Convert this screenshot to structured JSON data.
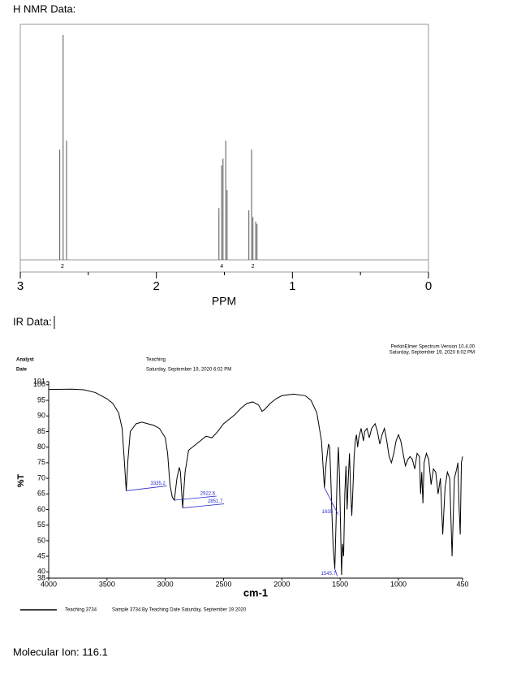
{
  "nmr_heading": "H NMR Data:",
  "ir_heading": "IR Data:",
  "footer": "Molecular Ion: 116.1",
  "chart_data": [
    {
      "type": "stick",
      "x_label": "PPM",
      "xlim": [
        3,
        0
      ],
      "xticks": [
        3,
        2,
        1,
        0
      ],
      "xminorticks": [
        2.5,
        1.5,
        0.5
      ],
      "x": [
        2.71,
        2.685,
        2.66,
        1.54,
        1.52,
        1.51,
        1.49,
        1.48,
        1.32,
        1.3,
        1.29,
        1.27,
        1.26
      ],
      "values": [
        49,
        100,
        53,
        23,
        42,
        45,
        53,
        31,
        22,
        49,
        19,
        17,
        16
      ],
      "color": "#555555",
      "integrals": [
        2,
        4,
        2
      ],
      "integral_x": [
        2.69,
        1.52,
        1.29
      ]
    },
    {
      "type": "line",
      "software": "PerkinElmer Spectrum Version 10.4.00",
      "software_date": "Saturday, September 19, 2020 6:02 PM",
      "analyst_label": "Analyst",
      "date_label": "Date",
      "analyst": "Teaching",
      "date": "Saturday, September 19, 2020 6:02 PM",
      "x_label": "cm-1",
      "y_label": "%T",
      "xlim": [
        4000,
        450
      ],
      "xticks": [
        4000,
        3500,
        3000,
        2500,
        2000,
        1500,
        1000,
        450
      ],
      "ylim": [
        38,
        101
      ],
      "yticks": [
        38,
        40,
        45,
        50,
        55,
        60,
        65,
        70,
        75,
        80,
        85,
        90,
        95,
        100,
        101
      ],
      "legend_description": "Sample 3734 By Teaching Date Saturday, September 19 2020",
      "x": [
        4000,
        3800,
        3700,
        3600,
        3500,
        3450,
        3400,
        3370,
        3350,
        3335,
        3320,
        3300,
        3250,
        3200,
        3150,
        3100,
        3050,
        3000,
        2980,
        2960,
        2940,
        2922,
        2900,
        2880,
        2870,
        2851,
        2830,
        2800,
        2750,
        2700,
        2650,
        2600,
        2550,
        2500,
        2450,
        2400,
        2350,
        2300,
        2250,
        2200,
        2170,
        2150,
        2100,
        2050,
        2000,
        1900,
        1800,
        1750,
        1700,
        1660,
        1635,
        1620,
        1600,
        1590,
        1580,
        1570,
        1560,
        1545.7,
        1535,
        1525,
        1515,
        1505,
        1495,
        1488,
        1480,
        1470,
        1460,
        1450,
        1440,
        1430,
        1420,
        1410,
        1400,
        1390,
        1380,
        1370,
        1360,
        1350,
        1340,
        1320,
        1300,
        1290,
        1270,
        1250,
        1230,
        1200,
        1180,
        1160,
        1140,
        1120,
        1100,
        1080,
        1060,
        1040,
        1020,
        1000,
        980,
        960,
        940,
        920,
        900,
        880,
        860,
        840,
        820,
        810,
        800,
        790,
        780,
        760,
        740,
        720,
        700,
        680,
        660,
        640,
        620,
        600,
        580,
        560,
        540,
        520,
        500,
        490,
        480,
        470,
        460,
        450
      ],
      "series": [
        {
          "name": "Teaching 3734",
          "color": "#000000",
          "values": [
            98.5,
            98.6,
            98.4,
            97.5,
            95.5,
            94,
            91,
            86,
            75,
            66,
            76,
            85,
            87.5,
            88,
            87.5,
            87,
            86,
            83,
            78,
            68,
            64,
            63,
            70,
            73.5,
            72,
            60.5,
            72,
            79,
            80.5,
            82,
            83.5,
            83,
            85,
            87.5,
            89,
            90.5,
            92.5,
            94,
            94.5,
            93.5,
            91.5,
            92,
            94,
            95.5,
            96.5,
            97,
            96.5,
            95,
            91,
            82,
            67,
            75,
            81,
            80,
            70,
            58,
            48,
            41,
            56,
            72,
            80,
            70,
            52,
            39,
            49,
            45,
            65,
            74,
            60,
            70,
            78,
            66,
            58,
            67,
            77,
            82,
            84,
            80,
            83,
            86,
            82,
            85,
            86,
            83,
            86,
            87.5,
            85,
            81,
            84,
            86,
            82,
            77,
            75,
            78,
            82,
            84,
            82,
            78,
            74,
            76,
            77,
            76,
            73,
            78,
            77,
            65,
            72,
            62,
            75,
            78,
            76,
            68,
            73,
            72,
            65,
            70,
            52,
            67,
            72,
            70,
            45,
            70,
            73,
            75,
            61,
            52,
            75,
            77
          ]
        }
      ],
      "peak_labels": [
        3335.2,
        2922.6,
        2851.7,
        1635,
        1545.7
      ],
      "peak_values": [
        66,
        63,
        60.5,
        67,
        41
      ],
      "annotation_color": "#2a2ad0"
    }
  ]
}
